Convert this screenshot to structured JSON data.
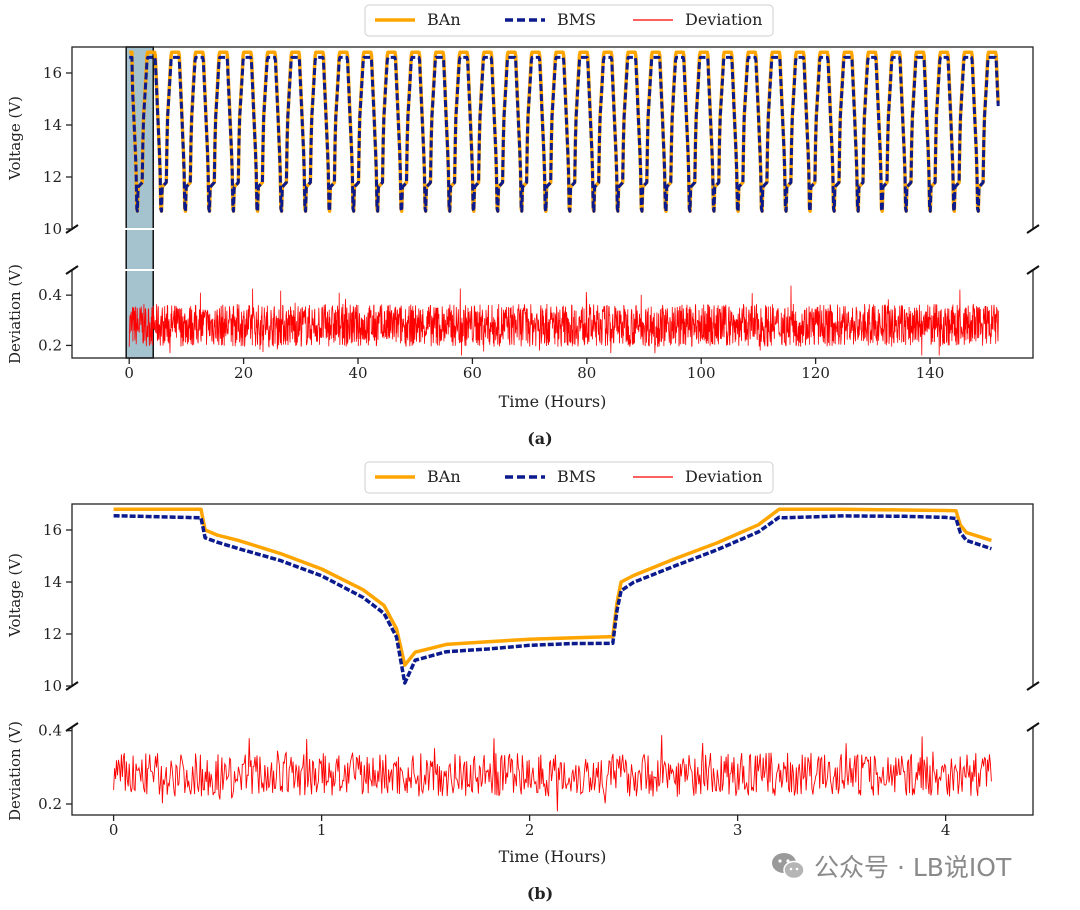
{
  "chart_data": [
    {
      "type": "line",
      "panel_label": "(a)",
      "legend": [
        "BAn",
        "BMS",
        "Deviation"
      ],
      "legend_placement": "top-center",
      "xlabel": "Time (Hours)",
      "xlim": [
        -10,
        158
      ],
      "xticks": [
        0,
        20,
        40,
        60,
        80,
        100,
        120,
        140
      ],
      "highlight_region_hours": [
        0,
        4.2
      ],
      "cycle_period_hours": 4.2,
      "cycles": 36,
      "total_hours": 152,
      "top_panel": {
        "ylabel": "Voltage (V)",
        "ylim": [
          10,
          17
        ],
        "yticks": [
          10,
          12,
          14,
          16
        ],
        "series": [
          {
            "name": "BAn",
            "color": "#FFA500",
            "style": "solid",
            "max_v": 16.8,
            "min_v": 10.0
          },
          {
            "name": "BMS",
            "color": "#0B1A8C",
            "style": "dashed",
            "max_v": 16.6,
            "min_v": 10.0
          }
        ]
      },
      "bottom_panel": {
        "ylabel": "Deviation (V)",
        "ylim": [
          0.15,
          0.5
        ],
        "yticks": [
          0.2,
          0.4
        ],
        "series": [
          {
            "name": "Deviation",
            "color": "#FF0000",
            "mean": 0.28,
            "range": [
              0.16,
              0.47
            ]
          }
        ]
      }
    },
    {
      "type": "line",
      "panel_label": "(b)",
      "legend": [
        "BAn",
        "BMS",
        "Deviation"
      ],
      "legend_placement": "top-center",
      "xlabel": "Time (Hours)",
      "xlim": [
        -0.2,
        4.42
      ],
      "xticks": [
        0,
        1,
        2,
        3,
        4
      ],
      "top_panel": {
        "ylabel": "Voltage (V)",
        "ylim": [
          10,
          17
        ],
        "yticks": [
          10,
          12,
          14,
          16
        ],
        "series": [
          {
            "name": "BAn",
            "color": "#FFA500",
            "style": "solid",
            "x": [
              0,
              0.42,
              0.44,
              0.5,
              0.6,
              0.8,
              1.0,
              1.2,
              1.3,
              1.36,
              1.4,
              1.45,
              1.6,
              1.8,
              2.0,
              2.2,
              2.4,
              2.42,
              2.44,
              2.5,
              2.7,
              2.9,
              3.1,
              3.2,
              3.22,
              3.5,
              3.8,
              4.0,
              4.05,
              4.07,
              4.1,
              4.22
            ],
            "y": [
              16.8,
              16.8,
              16.0,
              15.8,
              15.6,
              15.1,
              14.5,
              13.7,
              13.1,
              12.2,
              10.8,
              11.3,
              11.6,
              11.7,
              11.8,
              11.85,
              11.9,
              13.2,
              14.0,
              14.25,
              14.9,
              15.5,
              16.2,
              16.8,
              16.8,
              16.8,
              16.77,
              16.75,
              16.74,
              16.2,
              15.9,
              15.6
            ]
          },
          {
            "name": "BMS",
            "color": "#0B1A8C",
            "style": "dashed",
            "x": [
              0,
              0.42,
              0.44,
              0.5,
              0.6,
              0.8,
              1.0,
              1.2,
              1.3,
              1.36,
              1.4,
              1.45,
              1.6,
              1.8,
              2.0,
              2.2,
              2.4,
              2.42,
              2.44,
              2.5,
              2.7,
              2.9,
              3.1,
              3.2,
              3.22,
              3.5,
              3.8,
              4.0,
              4.05,
              4.07,
              4.1,
              4.22
            ],
            "y": [
              16.55,
              16.5,
              15.7,
              15.5,
              15.3,
              14.8,
              14.2,
              13.4,
              12.8,
              11.9,
              10.1,
              11.0,
              11.35,
              11.45,
              11.55,
              11.6,
              11.65,
              12.9,
              13.7,
              13.95,
              14.6,
              15.2,
              15.9,
              16.5,
              16.5,
              16.55,
              16.5,
              16.45,
              16.45,
              15.9,
              15.6,
              15.3
            ]
          }
        ]
      },
      "bottom_panel": {
        "ylabel": "Deviation (V)",
        "ylim": [
          0.17,
          0.41
        ],
        "yticks": [
          0.2,
          0.4
        ],
        "series": [
          {
            "name": "Deviation",
            "color": "#FF0000",
            "mean": 0.28,
            "range": [
              0.18,
              0.39
            ]
          }
        ]
      }
    }
  ],
  "watermark": {
    "text": "公众号 · LB说IOT",
    "icon": "wechat-icon"
  }
}
